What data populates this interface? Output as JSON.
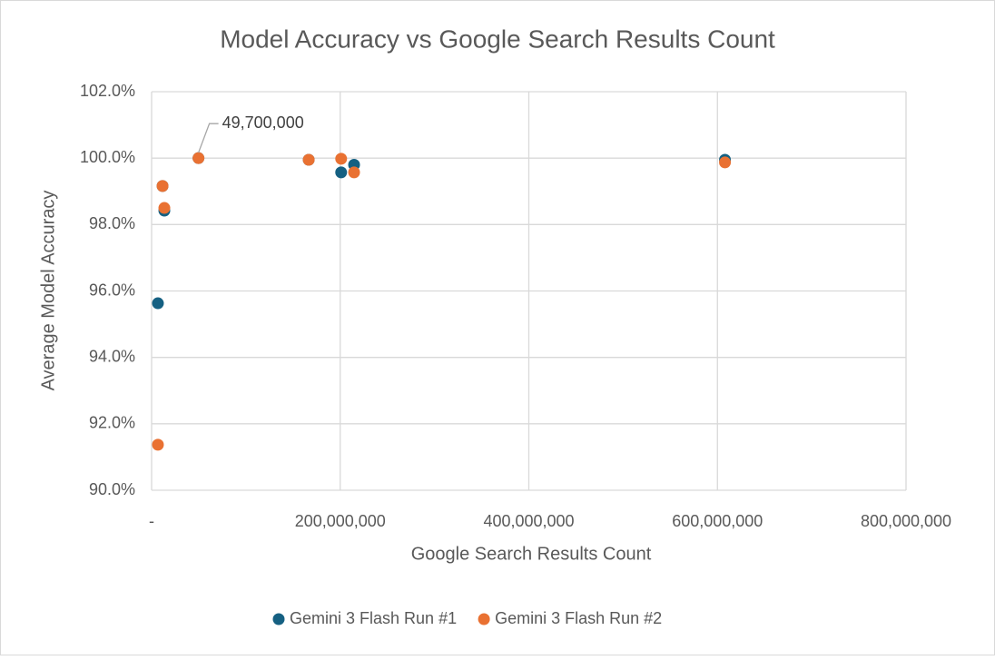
{
  "chart_data": {
    "type": "scatter",
    "title": "Model Accuracy vs Google Search Results Count",
    "x_label": "Google Search Results Count",
    "y_label": "Average Model Accuracy",
    "xlim": [
      0,
      800000000
    ],
    "xticks": [
      {
        "value": 0,
        "label": "-"
      },
      {
        "value": 200000000,
        "label": "200,000,000"
      },
      {
        "value": 400000000,
        "label": "400,000,000"
      },
      {
        "value": 600000000,
        "label": "600,000,000"
      },
      {
        "value": 800000000,
        "label": "800,000,000"
      }
    ],
    "ylim": [
      90,
      102
    ],
    "yticks": [
      {
        "value": 90,
        "label": "90.0%"
      },
      {
        "value": 92,
        "label": "92.0%"
      },
      {
        "value": 94,
        "label": "94.0%"
      },
      {
        "value": 96,
        "label": "96.0%"
      },
      {
        "value": 98,
        "label": "98.0%"
      },
      {
        "value": 100,
        "label": "100.0%"
      },
      {
        "value": 102,
        "label": "102.0%"
      }
    ],
    "grid": true,
    "legend": "bottom",
    "series": [
      {
        "name": "Gemini 3 Flash Run #1",
        "color": "#156082",
        "x": [
          6700000,
          13500000,
          11600000,
          49700000,
          166600000,
          201000000,
          214700000,
          608000000
        ],
        "values": [
          95.63,
          98.42,
          99.16,
          100.0,
          99.95,
          99.57,
          99.8,
          99.95
        ]
      },
      {
        "name": "Gemini 3 Flash Run #2",
        "color": "#e97132",
        "x": [
          6700000,
          13500000,
          11600000,
          49700000,
          166600000,
          201000000,
          214700000,
          608000000
        ],
        "values": [
          91.37,
          98.5,
          99.16,
          100.0,
          99.95,
          99.98,
          99.57,
          99.87
        ]
      }
    ],
    "annotations": [
      {
        "text": "49,700,000",
        "x": 49700000,
        "y": 100.0
      }
    ]
  }
}
